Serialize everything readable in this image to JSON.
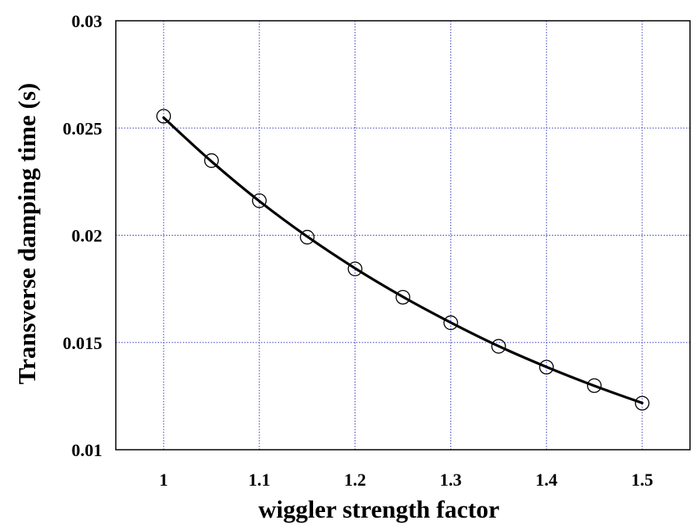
{
  "chart_data": {
    "type": "scatter",
    "title": "",
    "xlabel": "wiggler strength factor",
    "ylabel": "Transverse damping time (s)",
    "xlim": [
      0.95,
      1.55
    ],
    "ylim": [
      0.01,
      0.03
    ],
    "x_ticks": [
      1,
      1.1,
      1.2,
      1.3,
      1.4,
      1.5
    ],
    "x_tick_labels": [
      "1",
      "1.1",
      "1.2",
      "1.3",
      "1.4",
      "1.5"
    ],
    "y_ticks": [
      0.01,
      0.015,
      0.02,
      0.025,
      0.03
    ],
    "y_tick_labels": [
      "0.01",
      "0.015",
      "0.02",
      "0.025",
      "0.03"
    ],
    "grid": true,
    "legend": "none",
    "series": [
      {
        "type": "scatter",
        "marker": "open-circle",
        "color": "#000000",
        "x": [
          1.0,
          1.05,
          1.1,
          1.15,
          1.2,
          1.25,
          1.3,
          1.35,
          1.4,
          1.45,
          1.5
        ],
        "y": [
          0.02555,
          0.02348,
          0.02161,
          0.01991,
          0.01843,
          0.01711,
          0.01592,
          0.01482,
          0.01385,
          0.01299,
          0.01217
        ]
      },
      {
        "type": "line",
        "style": "solid-thick",
        "color": "#000000",
        "x": [
          1.0,
          1.05,
          1.1,
          1.15,
          1.2,
          1.25,
          1.3,
          1.35,
          1.4,
          1.45,
          1.5
        ],
        "y": [
          0.02548,
          0.02344,
          0.02159,
          0.01994,
          0.01846,
          0.01713,
          0.01593,
          0.01483,
          0.01386,
          0.01298,
          0.01218
        ]
      }
    ],
    "colors": {
      "grid": "#3b3bbf",
      "axes": "#000000",
      "background": "#ffffff"
    }
  }
}
